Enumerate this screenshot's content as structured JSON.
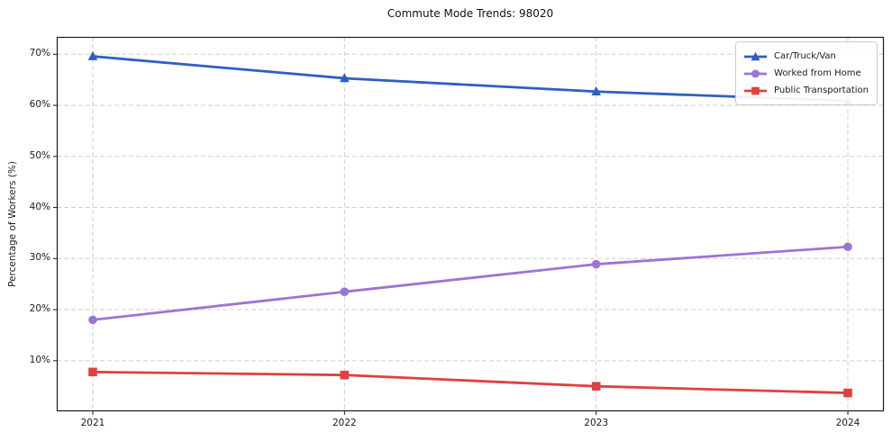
{
  "title": "Commute Mode Trends: 98020",
  "chart_data": {
    "type": "line",
    "title": "Commute Mode Trends: 98020",
    "xlabel": "",
    "ylabel": "Percentage of Workers (%)",
    "x": [
      2021,
      2022,
      2023,
      2024
    ],
    "xtick_labels": [
      "2021",
      "2022",
      "2023",
      "2024"
    ],
    "series": [
      {
        "name": "Car/Truck/Van",
        "color": "#2f5fc3",
        "marker": "triangle",
        "values": [
          69.6,
          65.3,
          62.7,
          60.9
        ]
      },
      {
        "name": "Worked from Home",
        "color": "#9b74d6",
        "marker": "circle",
        "values": [
          18.0,
          23.5,
          28.9,
          32.3
        ]
      },
      {
        "name": "Public Transportation",
        "color": "#e04040",
        "marker": "square",
        "values": [
          7.8,
          7.2,
          5.0,
          3.7
        ]
      }
    ],
    "ylim": [
      0.1,
      73.4
    ],
    "yticks": [
      10,
      20,
      30,
      40,
      50,
      60,
      70
    ],
    "ytick_labels": [
      "10%",
      "20%",
      "30%",
      "40%",
      "50%",
      "60%",
      "70%"
    ],
    "grid": true,
    "grid_style": "dashed",
    "legend_position": "upper right"
  },
  "colors": {
    "grid": "#cfcfcf",
    "spine": "#1a1a1a",
    "background": "#ffffff"
  }
}
